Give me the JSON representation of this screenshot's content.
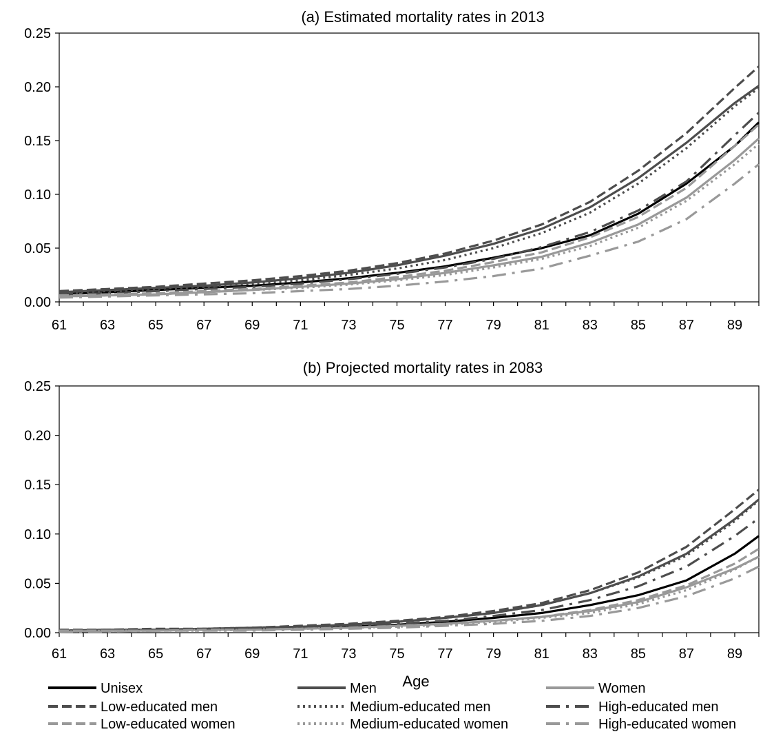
{
  "chart_data": [
    {
      "type": "line",
      "title": "(a) Estimated mortality rates in 2013",
      "xlabel": "",
      "ylabel": "",
      "xlim": [
        61,
        90
      ],
      "ylim": [
        0,
        0.25
      ],
      "x_ticks": [
        "61",
        "63",
        "65",
        "67",
        "69",
        "71",
        "73",
        "75",
        "77",
        "79",
        "81",
        "83",
        "85",
        "87",
        "89"
      ],
      "y_ticks": [
        "0.00",
        "0.05",
        "0.10",
        "0.15",
        "0.20",
        "0.25"
      ],
      "grid": false,
      "x": [
        61,
        63,
        65,
        67,
        69,
        71,
        73,
        75,
        77,
        79,
        81,
        83,
        85,
        87,
        89,
        90
      ],
      "series": [
        {
          "name": "Unisex",
          "values": [
            0.007,
            0.009,
            0.011,
            0.013,
            0.015,
            0.018,
            0.022,
            0.027,
            0.033,
            0.041,
            0.05,
            0.062,
            0.082,
            0.11,
            0.145,
            0.167
          ]
        },
        {
          "name": "Men",
          "values": [
            0.009,
            0.011,
            0.013,
            0.015,
            0.018,
            0.022,
            0.027,
            0.034,
            0.043,
            0.054,
            0.068,
            0.088,
            0.115,
            0.148,
            0.185,
            0.201
          ]
        },
        {
          "name": "Women",
          "values": [
            0.005,
            0.006,
            0.007,
            0.009,
            0.011,
            0.014,
            0.017,
            0.021,
            0.027,
            0.034,
            0.042,
            0.055,
            0.072,
            0.097,
            0.132,
            0.152
          ]
        },
        {
          "name": "Low-educated men",
          "values": [
            0.01,
            0.012,
            0.014,
            0.017,
            0.02,
            0.024,
            0.029,
            0.036,
            0.045,
            0.057,
            0.072,
            0.093,
            0.122,
            0.157,
            0.199,
            0.219
          ]
        },
        {
          "name": "Medium-educated men",
          "values": [
            0.008,
            0.01,
            0.012,
            0.014,
            0.017,
            0.02,
            0.025,
            0.031,
            0.039,
            0.05,
            0.064,
            0.083,
            0.11,
            0.143,
            0.182,
            0.199
          ]
        },
        {
          "name": "High-educated men",
          "values": [
            0.007,
            0.008,
            0.01,
            0.012,
            0.014,
            0.017,
            0.021,
            0.026,
            0.032,
            0.04,
            0.051,
            0.065,
            0.085,
            0.112,
            0.155,
            0.176
          ]
        },
        {
          "name": "Low-educated women",
          "values": [
            0.006,
            0.007,
            0.008,
            0.01,
            0.012,
            0.015,
            0.018,
            0.023,
            0.029,
            0.037,
            0.046,
            0.06,
            0.079,
            0.106,
            0.145,
            0.165
          ]
        },
        {
          "name": "Medium-educated women",
          "values": [
            0.005,
            0.006,
            0.007,
            0.009,
            0.011,
            0.013,
            0.016,
            0.02,
            0.025,
            0.032,
            0.04,
            0.052,
            0.069,
            0.094,
            0.128,
            0.147
          ]
        },
        {
          "name": "High-educated women",
          "values": [
            0.004,
            0.005,
            0.006,
            0.007,
            0.008,
            0.01,
            0.012,
            0.015,
            0.019,
            0.024,
            0.031,
            0.043,
            0.056,
            0.077,
            0.11,
            0.128
          ]
        }
      ]
    },
    {
      "type": "line",
      "title": "(b) Projected mortality rates in 2083",
      "xlabel": "Age",
      "ylabel": "",
      "xlim": [
        61,
        90
      ],
      "ylim": [
        0,
        0.25
      ],
      "x_ticks": [
        "61",
        "63",
        "65",
        "67",
        "69",
        "71",
        "73",
        "75",
        "77",
        "79",
        "81",
        "83",
        "85",
        "87",
        "89"
      ],
      "y_ticks": [
        "0.00",
        "0.05",
        "0.10",
        "0.15",
        "0.20",
        "0.25"
      ],
      "grid": false,
      "x": [
        61,
        63,
        65,
        67,
        69,
        71,
        73,
        75,
        77,
        79,
        81,
        83,
        85,
        87,
        89,
        90
      ],
      "series": [
        {
          "name": "Unisex",
          "values": [
            0.002,
            0.002,
            0.003,
            0.003,
            0.004,
            0.005,
            0.006,
            0.008,
            0.011,
            0.015,
            0.02,
            0.028,
            0.038,
            0.053,
            0.08,
            0.098
          ]
        },
        {
          "name": "Men",
          "values": [
            0.002,
            0.003,
            0.003,
            0.004,
            0.005,
            0.006,
            0.008,
            0.011,
            0.015,
            0.02,
            0.028,
            0.04,
            0.057,
            0.08,
            0.115,
            0.135
          ]
        },
        {
          "name": "Women",
          "values": [
            0.001,
            0.002,
            0.002,
            0.003,
            0.003,
            0.004,
            0.005,
            0.007,
            0.009,
            0.012,
            0.016,
            0.022,
            0.031,
            0.046,
            0.065,
            0.077
          ]
        },
        {
          "name": "Low-educated men",
          "values": [
            0.003,
            0.003,
            0.004,
            0.004,
            0.005,
            0.007,
            0.009,
            0.012,
            0.016,
            0.022,
            0.03,
            0.043,
            0.061,
            0.087,
            0.125,
            0.145
          ]
        },
        {
          "name": "Medium-educated men",
          "values": [
            0.002,
            0.003,
            0.003,
            0.004,
            0.005,
            0.006,
            0.008,
            0.011,
            0.015,
            0.02,
            0.028,
            0.04,
            0.056,
            0.078,
            0.113,
            0.134
          ]
        },
        {
          "name": "High-educated men",
          "values": [
            0.002,
            0.002,
            0.003,
            0.003,
            0.004,
            0.005,
            0.007,
            0.009,
            0.012,
            0.017,
            0.023,
            0.033,
            0.047,
            0.067,
            0.098,
            0.116
          ]
        },
        {
          "name": "Low-educated women",
          "values": [
            0.002,
            0.002,
            0.002,
            0.003,
            0.003,
            0.004,
            0.005,
            0.007,
            0.009,
            0.012,
            0.016,
            0.023,
            0.033,
            0.048,
            0.07,
            0.085
          ]
        },
        {
          "name": "Medium-educated women",
          "values": [
            0.001,
            0.002,
            0.002,
            0.002,
            0.003,
            0.004,
            0.005,
            0.006,
            0.008,
            0.011,
            0.015,
            0.02,
            0.029,
            0.043,
            0.064,
            0.077
          ]
        },
        {
          "name": "High-educated women",
          "values": [
            0.001,
            0.001,
            0.002,
            0.002,
            0.002,
            0.003,
            0.004,
            0.005,
            0.007,
            0.009,
            0.012,
            0.017,
            0.025,
            0.037,
            0.055,
            0.067
          ]
        }
      ]
    }
  ],
  "legend": {
    "placement": "bottom",
    "items": [
      {
        "name": "Unisex",
        "color": "#000000",
        "dash": "solid"
      },
      {
        "name": "Men",
        "color": "#4d4d4d",
        "dash": "solid"
      },
      {
        "name": "Women",
        "color": "#999999",
        "dash": "solid"
      },
      {
        "name": "Low-educated men",
        "color": "#4d4d4d",
        "dash": "dashed"
      },
      {
        "name": "Medium-educated men",
        "color": "#4d4d4d",
        "dash": "dotted"
      },
      {
        "name": "High-educated men",
        "color": "#4d4d4d",
        "dash": "dash-dot"
      },
      {
        "name": "Low-educated women",
        "color": "#999999",
        "dash": "dashed"
      },
      {
        "name": "Medium-educated women",
        "color": "#999999",
        "dash": "dotted"
      },
      {
        "name": "High-educated women",
        "color": "#999999",
        "dash": "dash-dot"
      }
    ]
  }
}
